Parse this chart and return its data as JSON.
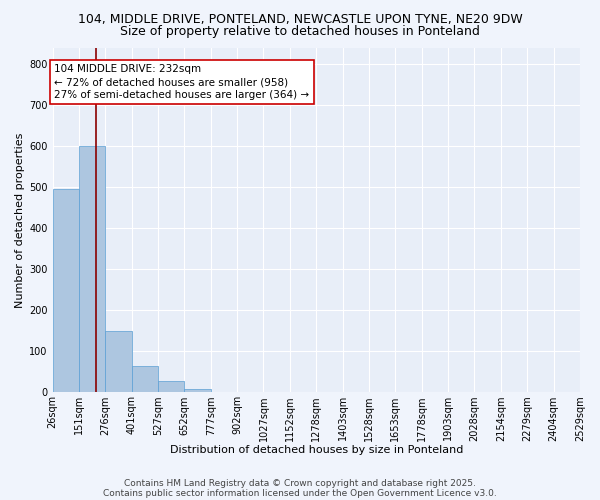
{
  "title_line1": "104, MIDDLE DRIVE, PONTELAND, NEWCASTLE UPON TYNE, NE20 9DW",
  "title_line2": "Size of property relative to detached houses in Ponteland",
  "xlabel": "Distribution of detached houses by size in Ponteland",
  "ylabel": "Number of detached properties",
  "bar_edges": [
    26,
    151,
    276,
    401,
    527,
    652,
    777,
    902,
    1027,
    1152,
    1278,
    1403,
    1528,
    1653,
    1778,
    1903,
    2028,
    2154,
    2279,
    2404,
    2529
  ],
  "bar_heights": [
    495,
    600,
    150,
    65,
    27,
    8,
    0,
    0,
    0,
    0,
    0,
    0,
    0,
    0,
    0,
    0,
    0,
    0,
    0,
    0
  ],
  "bar_color": "#adc6e0",
  "bar_edgecolor": "#5a9fd4",
  "background_color": "#e8eef8",
  "grid_color": "#ffffff",
  "vline_x": 232,
  "vline_color": "#8b0000",
  "annotation_text": "104 MIDDLE DRIVE: 232sqm\n← 72% of detached houses are smaller (958)\n27% of semi-detached houses are larger (364) →",
  "annotation_box_facecolor": "#ffffff",
  "annotation_box_edgecolor": "#cc0000",
  "ylim": [
    0,
    840
  ],
  "yticks": [
    0,
    100,
    200,
    300,
    400,
    500,
    600,
    700,
    800
  ],
  "fig_facecolor": "#f0f4fc",
  "footnote_line1": "Contains HM Land Registry data © Crown copyright and database right 2025.",
  "footnote_line2": "Contains public sector information licensed under the Open Government Licence v3.0.",
  "title_fontsize": 9,
  "subtitle_fontsize": 9,
  "axis_label_fontsize": 8,
  "tick_fontsize": 7,
  "annotation_fontsize": 7.5,
  "footnote_fontsize": 6.5
}
